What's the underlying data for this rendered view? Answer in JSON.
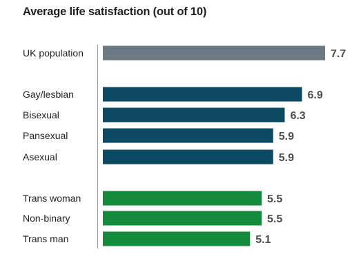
{
  "chart_data": {
    "type": "bar",
    "orientation": "horizontal",
    "title": "Average life satisfaction (out of 10)",
    "xlabel": "",
    "ylabel": "",
    "xlim": [
      0,
      7.7
    ],
    "grid": false,
    "legend": "none",
    "categories": [
      "UK population",
      "Gay/lesbian",
      "Bisexual",
      "Pansexual",
      "Asexual",
      "Trans woman",
      "Non-binary",
      "Trans man"
    ],
    "values": [
      7.7,
      6.9,
      6.3,
      5.9,
      5.9,
      5.5,
      5.5,
      5.1
    ],
    "value_labels": [
      "7.7",
      "6.9",
      "6.3",
      "5.9",
      "5.9",
      "5.5",
      "5.5",
      "5.1"
    ],
    "groups": [
      0,
      1,
      1,
      1,
      1,
      2,
      2,
      2
    ],
    "colors": [
      "#6c7a84",
      "#0c4a63",
      "#138a3c"
    ]
  }
}
